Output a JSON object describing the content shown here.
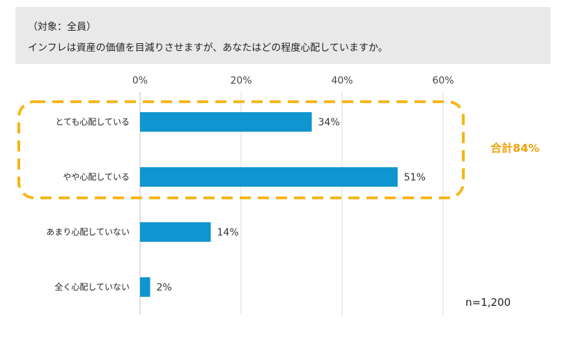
{
  "header": {
    "target": "（対象：全員）",
    "question": "インフレは資産の価値を目減りさせますが、あなたはどの程度心配していますか。"
  },
  "chart_data": {
    "type": "bar",
    "orientation": "horizontal",
    "categories": [
      "とても心配している",
      "やや心配している",
      "あまり心配していない",
      "全く心配していない"
    ],
    "values": [
      34,
      51,
      14,
      2
    ],
    "value_labels": [
      "34%",
      "51%",
      "14%",
      "2%"
    ],
    "xlim": [
      0,
      60
    ],
    "ticks": [
      "0%",
      "20%",
      "40%",
      "60%"
    ],
    "tick_values": [
      0,
      20,
      40,
      60
    ],
    "grid": true,
    "bar_color": "#0f95cf",
    "highlight": {
      "categories": [
        "とても心配している",
        "やや心配している"
      ],
      "label": "合計84%",
      "color": "#f7b515"
    },
    "note": "n=1,200"
  }
}
